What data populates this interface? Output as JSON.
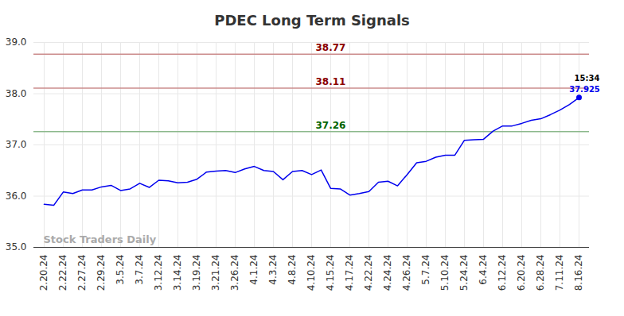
{
  "chart_data": {
    "type": "line",
    "title": "PDEC Long Term Signals",
    "categories": [
      "2.20.24",
      null,
      "2.22.24",
      null,
      "2.27.24",
      null,
      "2.29.24",
      null,
      "3.5.24",
      null,
      "3.7.24",
      null,
      "3.12.24",
      null,
      "3.14.24",
      null,
      "3.19.24",
      null,
      "3.21.24",
      null,
      "3.26.24",
      null,
      "4.1.24",
      null,
      "4.3.24",
      null,
      "4.8.24",
      null,
      "4.10.24",
      null,
      "4.15.24",
      null,
      "4.17.24",
      null,
      "4.22.24",
      null,
      "4.24.24",
      null,
      "4.26.24",
      null,
      "5.7.24",
      null,
      "5.10.24",
      null,
      "5.24.24",
      null,
      "6.4.24",
      null,
      "6.12.24",
      null,
      "6.20.24",
      null,
      "6.28.24",
      null,
      "7.11.24",
      null,
      "8.16.24"
    ],
    "values": [
      35.84,
      35.82,
      36.08,
      36.05,
      36.12,
      36.12,
      36.18,
      36.21,
      36.11,
      36.14,
      36.25,
      36.17,
      36.31,
      36.3,
      36.26,
      36.27,
      36.33,
      36.47,
      36.49,
      36.5,
      36.46,
      36.53,
      36.58,
      36.5,
      36.48,
      36.32,
      36.48,
      36.5,
      36.42,
      36.51,
      36.15,
      36.14,
      36.02,
      36.05,
      36.09,
      36.27,
      36.29,
      36.2,
      36.42,
      36.65,
      36.68,
      36.76,
      36.8,
      36.8,
      37.09,
      37.1,
      37.11,
      37.27,
      37.37,
      37.37,
      37.42,
      37.48,
      37.51,
      37.59,
      37.68,
      37.79,
      37.925
    ],
    "color": "#0000ee",
    "ylim": [
      35,
      39
    ],
    "yticks": [
      35,
      36,
      37,
      38,
      39
    ],
    "grid": true,
    "reference_lines": [
      {
        "value": 38.77,
        "color": "#8b0000"
      },
      {
        "value": 38.11,
        "color": "#8b0000"
      },
      {
        "value": 37.26,
        "color": "#006400"
      }
    ],
    "last_point_time": "15:34",
    "watermark": "Stock Traders Daily"
  }
}
